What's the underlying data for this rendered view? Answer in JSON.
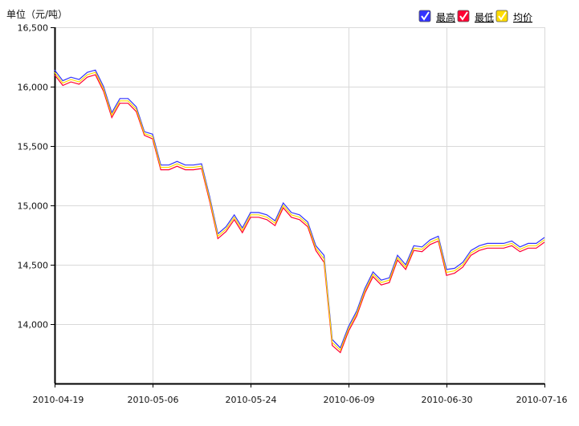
{
  "chart_data": {
    "type": "line",
    "title": "",
    "ylabel": "单位（元/吨）",
    "xlabel": "",
    "ylim": [
      13500,
      16500
    ],
    "yticks": [
      14000,
      14500,
      15000,
      15500,
      16000,
      16500
    ],
    "ytick_labels": [
      "14,000",
      "14,500",
      "15,000",
      "15,500",
      "16,000",
      "16,500"
    ],
    "xtick_labels": [
      "2010-04-19",
      "2010-05-06",
      "2010-05-24",
      "2010-06-09",
      "2010-06-30",
      "2010-07-16"
    ],
    "xtick_index": [
      0,
      12,
      24,
      36,
      48,
      60
    ],
    "grid": true,
    "legend_position": "top-right",
    "series": [
      {
        "name": "最高",
        "color": "#3333ff",
        "values": [
          16140,
          16050,
          16080,
          16060,
          16120,
          16140,
          16000,
          15780,
          15900,
          15900,
          15830,
          15620,
          15600,
          15340,
          15340,
          15370,
          15340,
          15340,
          15350,
          15070,
          14760,
          14820,
          14920,
          14810,
          14940,
          14940,
          14920,
          14870,
          15020,
          14940,
          14920,
          14860,
          14660,
          14580,
          13870,
          13800,
          13980,
          14110,
          14300,
          14440,
          14370,
          14390,
          14580,
          14500,
          14660,
          14650,
          14710,
          14740,
          14460,
          14470,
          14520,
          14620,
          14660,
          14680,
          14680,
          14680,
          14700,
          14650,
          14680,
          14680,
          14730
        ]
      },
      {
        "name": "最低",
        "color": "#ff0033",
        "values": [
          16100,
          16010,
          16040,
          16020,
          16080,
          16100,
          15960,
          15740,
          15860,
          15860,
          15790,
          15590,
          15560,
          15300,
          15300,
          15330,
          15300,
          15300,
          15310,
          15030,
          14720,
          14780,
          14880,
          14770,
          14900,
          14900,
          14880,
          14830,
          14980,
          14900,
          14880,
          14820,
          14620,
          14520,
          13820,
          13760,
          13940,
          14070,
          14260,
          14400,
          14330,
          14350,
          14540,
          14460,
          14620,
          14610,
          14670,
          14700,
          14410,
          14430,
          14480,
          14580,
          14620,
          14640,
          14640,
          14640,
          14660,
          14610,
          14640,
          14640,
          14690
        ]
      },
      {
        "name": "均价",
        "color": "#ffdd00",
        "values": [
          16120,
          16030,
          16060,
          16040,
          16100,
          16120,
          15980,
          15760,
          15880,
          15880,
          15810,
          15605,
          15580,
          15320,
          15320,
          15350,
          15320,
          15320,
          15330,
          15050,
          14740,
          14800,
          14900,
          14790,
          14920,
          14920,
          14900,
          14850,
          15000,
          14920,
          14900,
          14840,
          14640,
          14550,
          13845,
          13780,
          13960,
          14090,
          14280,
          14420,
          14350,
          14370,
          14560,
          14480,
          14640,
          14630,
          14690,
          14720,
          14435,
          14450,
          14500,
          14600,
          14640,
          14660,
          14660,
          14660,
          14680,
          14630,
          14660,
          14660,
          14710
        ]
      }
    ]
  }
}
